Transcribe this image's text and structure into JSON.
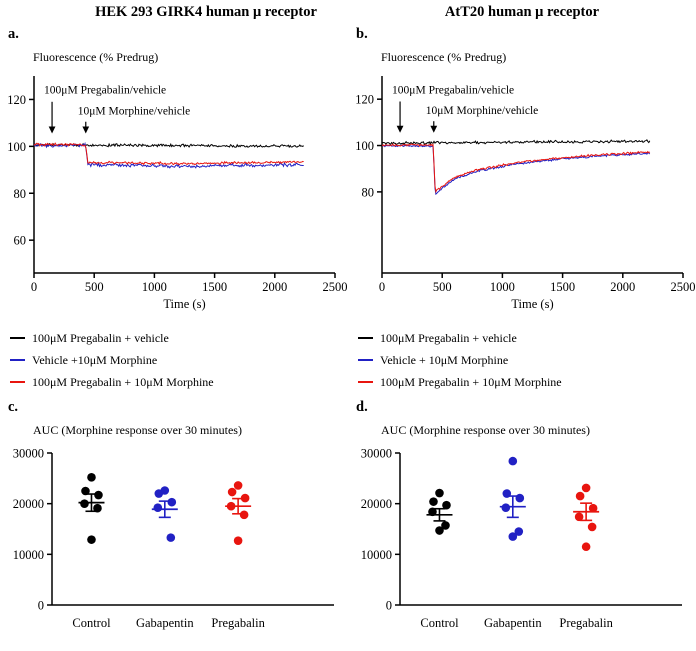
{
  "figure": {
    "columns": [
      {
        "title": "HEK 293 GIRK4 human μ receptor"
      },
      {
        "title": "AtT20 human μ receptor"
      }
    ]
  },
  "chart_data": [
    {
      "id": "a",
      "type": "line",
      "panel_label": "a.",
      "ylabel": "Fluorescence (% Predrug)",
      "xlabel": "Time (s)",
      "xlim": [
        0,
        2500
      ],
      "ylim": [
        46,
        130
      ],
      "xticks": [
        0,
        500,
        1000,
        1500,
        2000,
        2500
      ],
      "yticks": [
        60,
        80,
        100,
        120
      ],
      "legend_position": "below",
      "grid": false,
      "annotations": [
        {
          "text": "100μM Pregabalin/vehicle",
          "arrow_x": 150,
          "text_y": 122.5,
          "arrow_from": 119,
          "arrow_to": 105.5
        },
        {
          "text": "10μM Morphine/vehicle",
          "arrow_x": 430,
          "text_y": 113.5,
          "arrow_from": 110.5,
          "arrow_to": 105.5
        }
      ],
      "series": [
        {
          "name": "100μM Pregabalin + vehicle",
          "color": "#000000",
          "noise": 0.7,
          "keypoints": [
            [
              0,
              100.6
            ],
            [
              2240,
              100.1
            ]
          ]
        },
        {
          "name": "Vehicle +10μM Morphine",
          "color": "#2121c4",
          "noise": 0.9,
          "keypoints": [
            [
              0,
              100.4
            ],
            [
              428,
              100.4
            ],
            [
              448,
              92.2
            ],
            [
              1200,
              91.5
            ],
            [
              2240,
              92.2
            ]
          ]
        },
        {
          "name": "100μM Pregabalin + 10μM Morphine",
          "color": "#e8150f",
          "noise": 0.7,
          "keypoints": [
            [
              0,
              100.8
            ],
            [
              428,
              100.8
            ],
            [
              448,
              93.2
            ],
            [
              1200,
              92.6
            ],
            [
              2240,
              93.4
            ]
          ]
        }
      ]
    },
    {
      "id": "b",
      "type": "line",
      "panel_label": "b.",
      "ylabel": "Fluorescence (% Predrug)",
      "xlabel": "Time (s)",
      "xlim": [
        0,
        2500
      ],
      "ylim": [
        45,
        130
      ],
      "xticks": [
        0,
        500,
        1000,
        1500,
        2000,
        2500
      ],
      "yticks": [
        80,
        100,
        120
      ],
      "legend_position": "below",
      "grid": false,
      "annotations": [
        {
          "text": "100μM Pregabalin/vehicle",
          "arrow_x": 150,
          "text_y": 122.5,
          "arrow_from": 119,
          "arrow_to": 105.5
        },
        {
          "text": "10μM Morphine/vehicle",
          "arrow_x": 430,
          "text_y": 113.5,
          "arrow_from": 110.5,
          "arrow_to": 105.5
        }
      ],
      "series": [
        {
          "name": "100μM Pregabalin + vehicle",
          "color": "#000000",
          "noise": 0.7,
          "keypoints": [
            [
              0,
              100.8
            ],
            [
              400,
              101.2
            ],
            [
              2230,
              101.9
            ]
          ]
        },
        {
          "name": "Vehicle + 10μM Morphine",
          "color": "#2121c4",
          "noise": 0.55,
          "keypoints": [
            [
              0,
              99.8
            ],
            [
              425,
              99.8
            ],
            [
              442,
              79.0
            ],
            [
              600,
              85.5
            ],
            [
              800,
              89.0
            ],
            [
              1100,
              92.0
            ],
            [
              1500,
              94.3
            ],
            [
              1900,
              95.8
            ],
            [
              2230,
              96.6
            ]
          ]
        },
        {
          "name": "100μM Pregabalin + 10μM Morphine",
          "color": "#e8150f",
          "noise": 0.55,
          "keypoints": [
            [
              0,
              100.2
            ],
            [
              425,
              100.2
            ],
            [
              442,
              80.0
            ],
            [
              600,
              86.2
            ],
            [
              800,
              89.6
            ],
            [
              1100,
              92.5
            ],
            [
              1500,
              94.8
            ],
            [
              1900,
              96.3
            ],
            [
              2230,
              97.2
            ]
          ]
        }
      ]
    },
    {
      "id": "c",
      "type": "scatter",
      "panel_label": "c.",
      "title": "AUC (Morphine response over 30 minutes)",
      "ylim": [
        0,
        30000
      ],
      "yticks": [
        0,
        10000,
        20000,
        30000
      ],
      "grid": false,
      "groups": [
        {
          "name": "Control",
          "color": "#000000",
          "values": [
            25200,
            22500,
            21700,
            20000,
            19100,
            12900
          ],
          "mean": 20200,
          "sem": 1700
        },
        {
          "name": "Gabapentin",
          "color": "#2121c4",
          "values": [
            22600,
            22000,
            20300,
            19200,
            13300
          ],
          "mean": 18900,
          "sem": 1600
        },
        {
          "name": "Pregabalin",
          "color": "#e8150f",
          "values": [
            23600,
            22300,
            21100,
            19500,
            17800,
            12700
          ],
          "mean": 19500,
          "sem": 1500
        }
      ]
    },
    {
      "id": "d",
      "type": "scatter",
      "panel_label": "d.",
      "title": "AUC (Morphine response over 30 minutes)",
      "ylim": [
        0,
        30000
      ],
      "yticks": [
        0,
        10000,
        20000,
        30000
      ],
      "grid": false,
      "groups": [
        {
          "name": "Control",
          "color": "#000000",
          "values": [
            22100,
            20400,
            19700,
            18400,
            15700,
            14700
          ],
          "mean": 17800,
          "sem": 1200
        },
        {
          "name": "Gabapentin",
          "color": "#2121c4",
          "values": [
            28400,
            22000,
            21100,
            19200,
            14500,
            13500
          ],
          "mean": 19400,
          "sem": 2100
        },
        {
          "name": "Pregabalin",
          "color": "#e8150f",
          "values": [
            23100,
            21500,
            19100,
            17400,
            15400,
            11500
          ],
          "mean": 18400,
          "sem": 1700
        }
      ]
    }
  ]
}
